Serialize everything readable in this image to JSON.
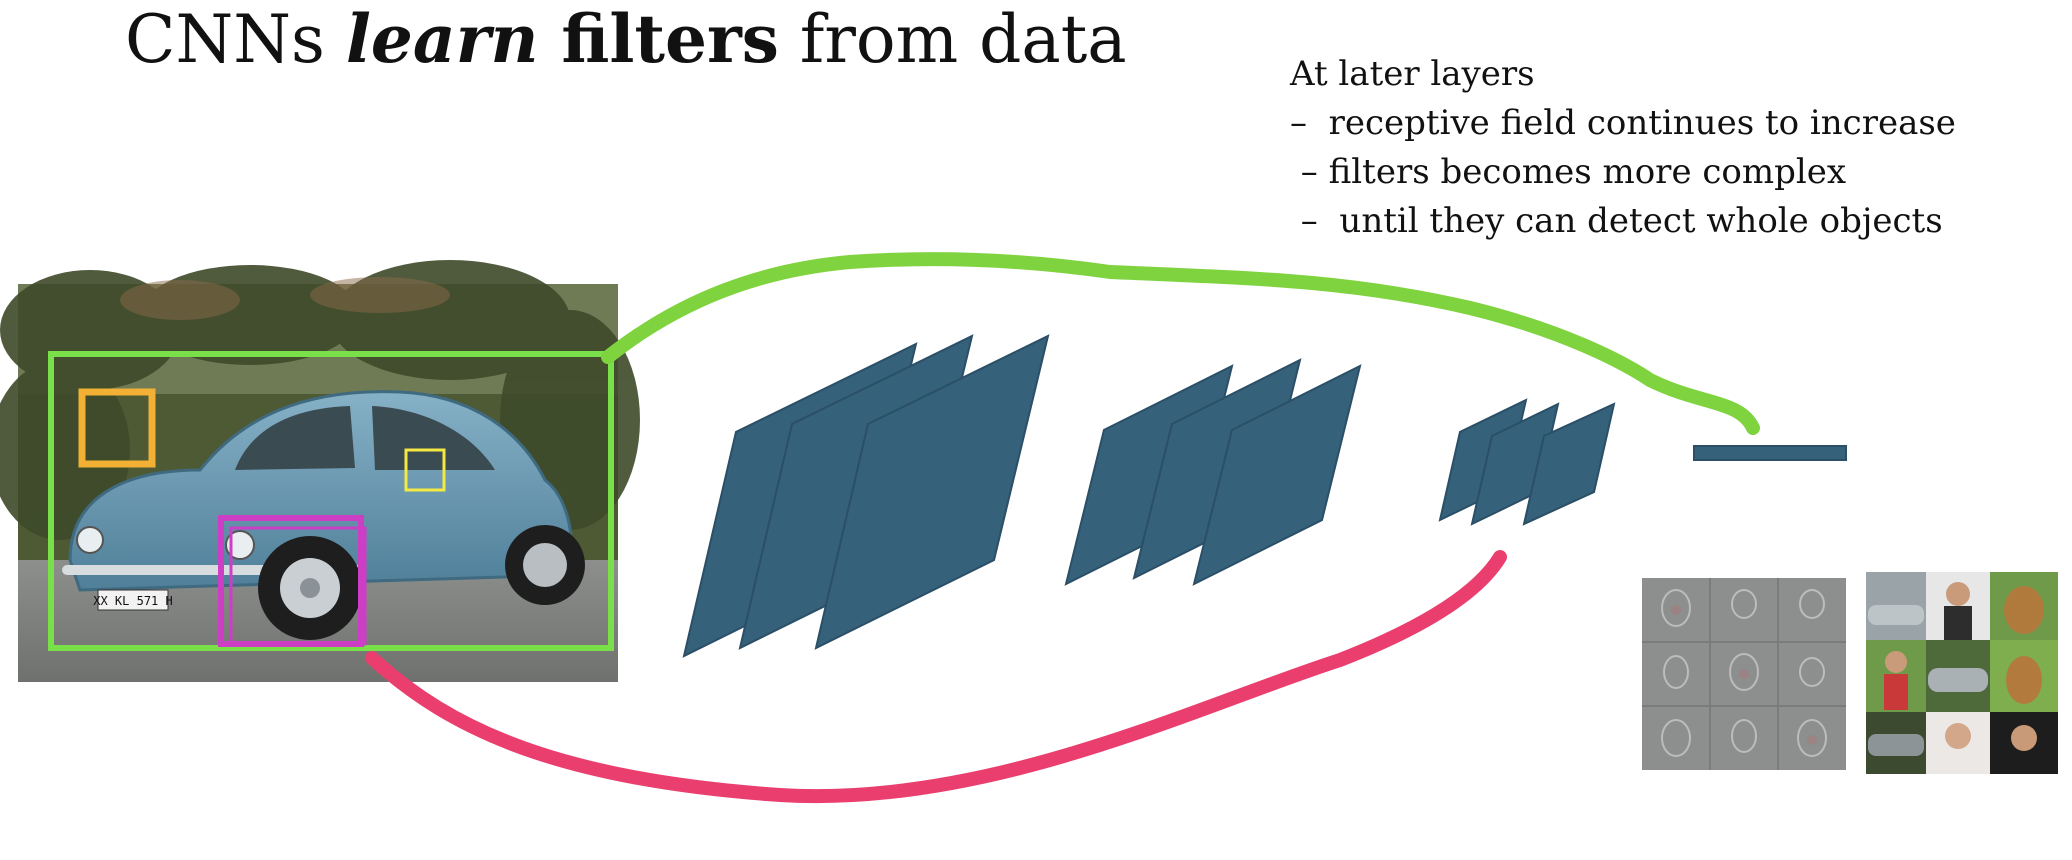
{
  "title": {
    "part1": "CNNs ",
    "part2": "learn",
    "part3": " filters",
    "part4": " from data"
  },
  "notes": {
    "heading": "At later layers",
    "lines": [
      "–  receptive field continues to increase",
      " – filters becomes more complex",
      " –  until they can detect whole objects"
    ]
  },
  "plate": {
    "text": "XX KL 571 H"
  },
  "colors": {
    "layer_fill": "#36617b",
    "layer_stroke": "#2b4f66",
    "receptive_green": "#7fd33f",
    "box_green": "#79e04a",
    "box_orange": "#f2b134",
    "box_magenta": "#cc3fc4",
    "box_yellow": "#f4e842",
    "curve_pink": "#ea3f6e",
    "car_body": "#6e9bb4"
  },
  "legend_icons": [
    "car-photo",
    "filter-visualization-grid",
    "object-examples-grid"
  ]
}
